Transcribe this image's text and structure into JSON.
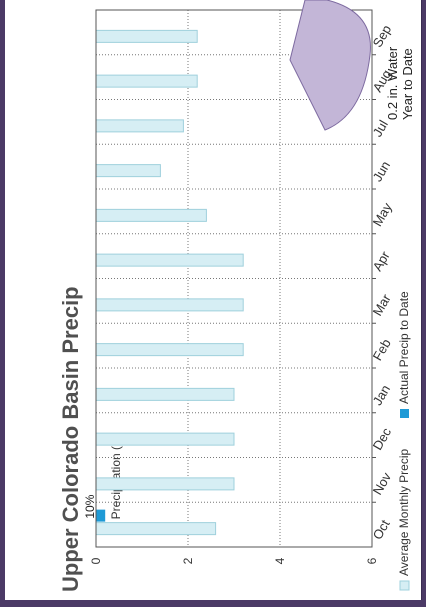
{
  "colors": {
    "frame": "#4b3a66",
    "average_fill": "#d6eef4",
    "average_stroke": "#9fd0dc",
    "actual_fill": "#1e9ad6",
    "callout_fill": "#c3b6d7",
    "callout_stroke": "#7d6aa0",
    "title_color": "#505050"
  },
  "callout": {
    "line1": "0.2 in.  Water",
    "line2": "Year to Date"
  },
  "chart_data": {
    "type": "bar",
    "orientation": "rotated",
    "title": "Upper Colorado Basin Precip",
    "xlabel": "",
    "ylabel": "Precipitation (in)",
    "ylim": [
      0,
      6
    ],
    "yticks": [
      "0",
      "2",
      "4",
      "6"
    ],
    "grid": true,
    "categories": [
      "Oct",
      "Nov",
      "Dec",
      "Jan",
      "Feb",
      "Mar",
      "Apr",
      "May",
      "Jun",
      "Jul",
      "Aug",
      "Sep"
    ],
    "series": [
      {
        "name": "Average Monthly Precip",
        "values": [
          2.6,
          3.0,
          3.0,
          3.0,
          3.2,
          3.2,
          3.2,
          2.4,
          1.4,
          1.9,
          2.2,
          2.2
        ]
      },
      {
        "name": "Actual Precip to Date",
        "values": [
          0.2,
          null,
          null,
          null,
          null,
          null,
          null,
          null,
          null,
          null,
          null,
          null
        ]
      }
    ],
    "annotations": [
      {
        "category": "Oct",
        "text": "10%"
      }
    ],
    "legend_position": "bottom"
  }
}
